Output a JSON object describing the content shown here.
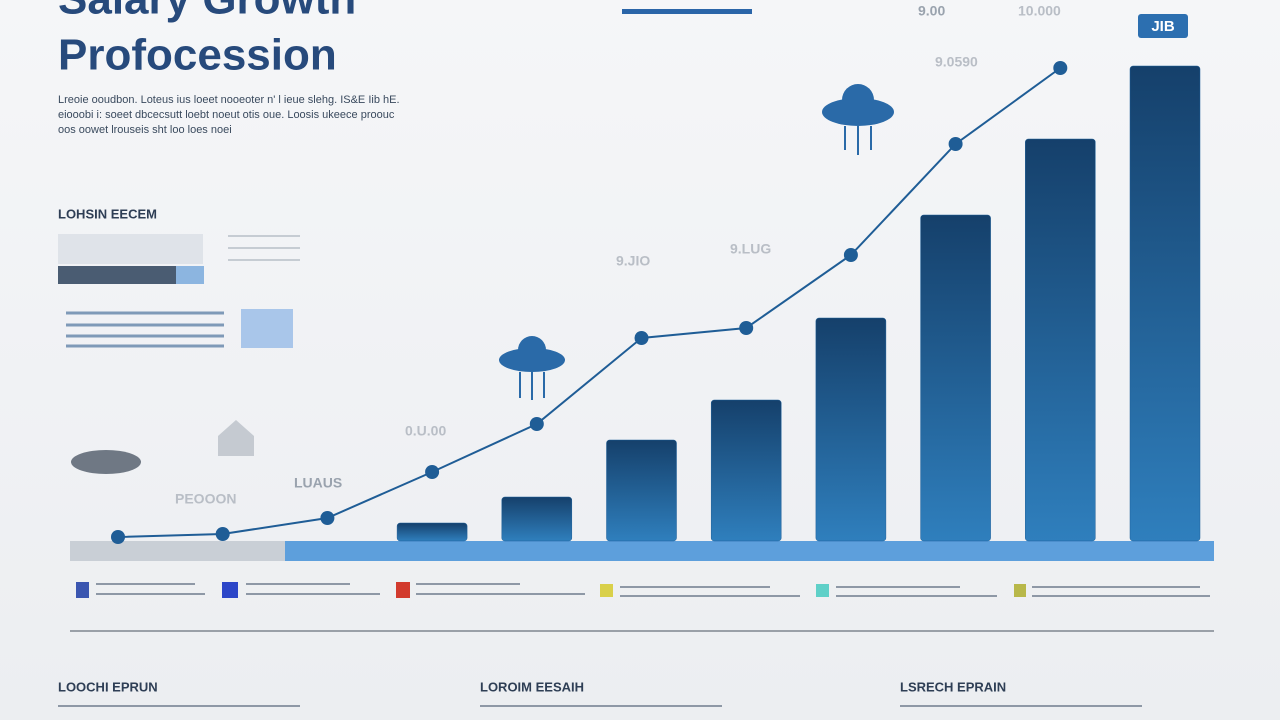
{
  "header": {
    "title": "Salary Growth",
    "subtitle": "Profocession",
    "intro": [
      "Lreoie ooudbon. Loteus ius loeet nooeoter n' l ieue slehg. IS&E Iib hE.",
      "eiooobi i: soeet dbcecsutt loebt noeut otis oue. Loosis ukeece proouc",
      "oos oowet lrouseis sht loo loes noei"
    ]
  },
  "side_label": "LOHSIN EECEM",
  "chart_data": {
    "type": "bar",
    "bars": {
      "x": [
        3,
        4,
        5,
        6,
        7,
        8,
        9,
        10
      ],
      "values": [
        3.6,
        8.8,
        20.2,
        28.2,
        44.6,
        65.2,
        80.4,
        95
      ],
      "color": "#1d5f99"
    },
    "line": {
      "x": [
        0,
        1,
        2,
        3,
        4,
        5,
        6,
        7,
        8,
        9
      ],
      "values": [
        0.8,
        1.4,
        4.6,
        13.8,
        23.4,
        40.6,
        42.6,
        57.2,
        79.4,
        94.6
      ],
      "color": "#1f5d96"
    },
    "xlim": [
      0,
      10
    ],
    "ylim": [
      0,
      100
    ]
  },
  "floating_labels": [
    "10.000",
    "9.0590",
    "9.JIO",
    "9.LUG",
    "0.U.00",
    "LUAUS",
    "PEOOON",
    "9.00",
    "JIB"
  ],
  "sections": [
    "LOOCHI EPRUN",
    "LOROIM EESAIH",
    "LSRECH EPRAIN"
  ]
}
